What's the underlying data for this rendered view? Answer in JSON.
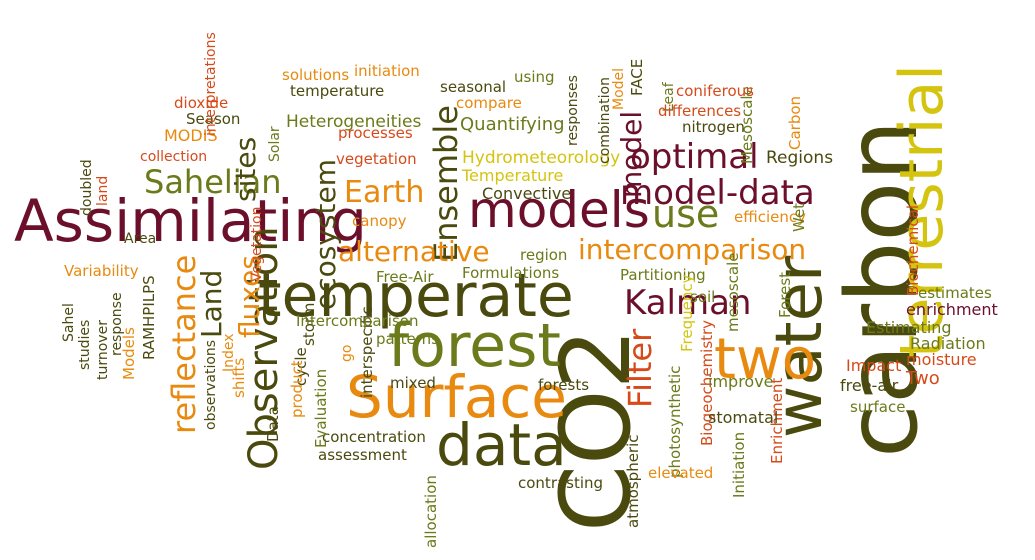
{
  "palette": {
    "maroon": "#6b0f2b",
    "olive": "#4a4a0f",
    "orange": "#e88a10",
    "yellow": "#d4c40f",
    "red": "#d64a1a",
    "green": "#6b7a1a"
  },
  "words": [
    "Assimilating",
    "models",
    "carbon",
    "CO2",
    "terrestrial",
    "water",
    "temperate",
    "Surface",
    "forest",
    "data",
    "two",
    "Observation",
    "Ensemble",
    "model-data",
    "optimal",
    "use",
    "intercomparison",
    "alternative",
    "Kalman",
    "Filter",
    "Sahelian",
    "Earth",
    "ecosystem",
    "Land",
    "fluxes",
    "sites",
    "reflectance",
    "model",
    "Heterogeneities",
    "Quantifying",
    "Hydrometeorology",
    "Temperature",
    "Convective",
    "region",
    "Free-Air",
    "Formulations",
    "Partitioning",
    "efficiency",
    "Regions",
    "Mesoscale",
    "Carbon",
    "Biochemical",
    "estimates",
    "enrichment",
    "Estimating",
    "Radiation",
    "moisture",
    "Two",
    "free-air",
    "surface",
    "Impact",
    "Forest",
    "mesoscale",
    "Frequency",
    "soil",
    "Biogeochemistry",
    "Enrichment",
    "photosynthetic",
    "improve",
    "stomatal",
    "Initiation",
    "elevated",
    "atmospheric",
    "forests",
    "mixed",
    "patterns",
    "interspecific",
    "concentration",
    "assessment",
    "allocation",
    "contrasting",
    "storm",
    "cycle",
    "Intercomparison",
    "Evaluation",
    "product",
    "Data",
    "shifts",
    "Index",
    "observations",
    "Models",
    "RAMHPILPS",
    "response",
    "turnover",
    "studies",
    "Sahel",
    "Variability",
    "Area",
    "land",
    "doubled",
    "collection",
    "MODIS",
    "Season",
    "dioxide",
    "interpretations",
    "solutions",
    "initiation",
    "temperature",
    "seasonal",
    "compare",
    "using",
    "responses",
    "combination",
    "Model",
    "FACE",
    "Leaf",
    "coniferous",
    "differences",
    "nitrogen",
    "processes",
    "vegetation",
    "Solar",
    "Vegetation",
    "canopy",
    "go",
    "Wet"
  ]
}
